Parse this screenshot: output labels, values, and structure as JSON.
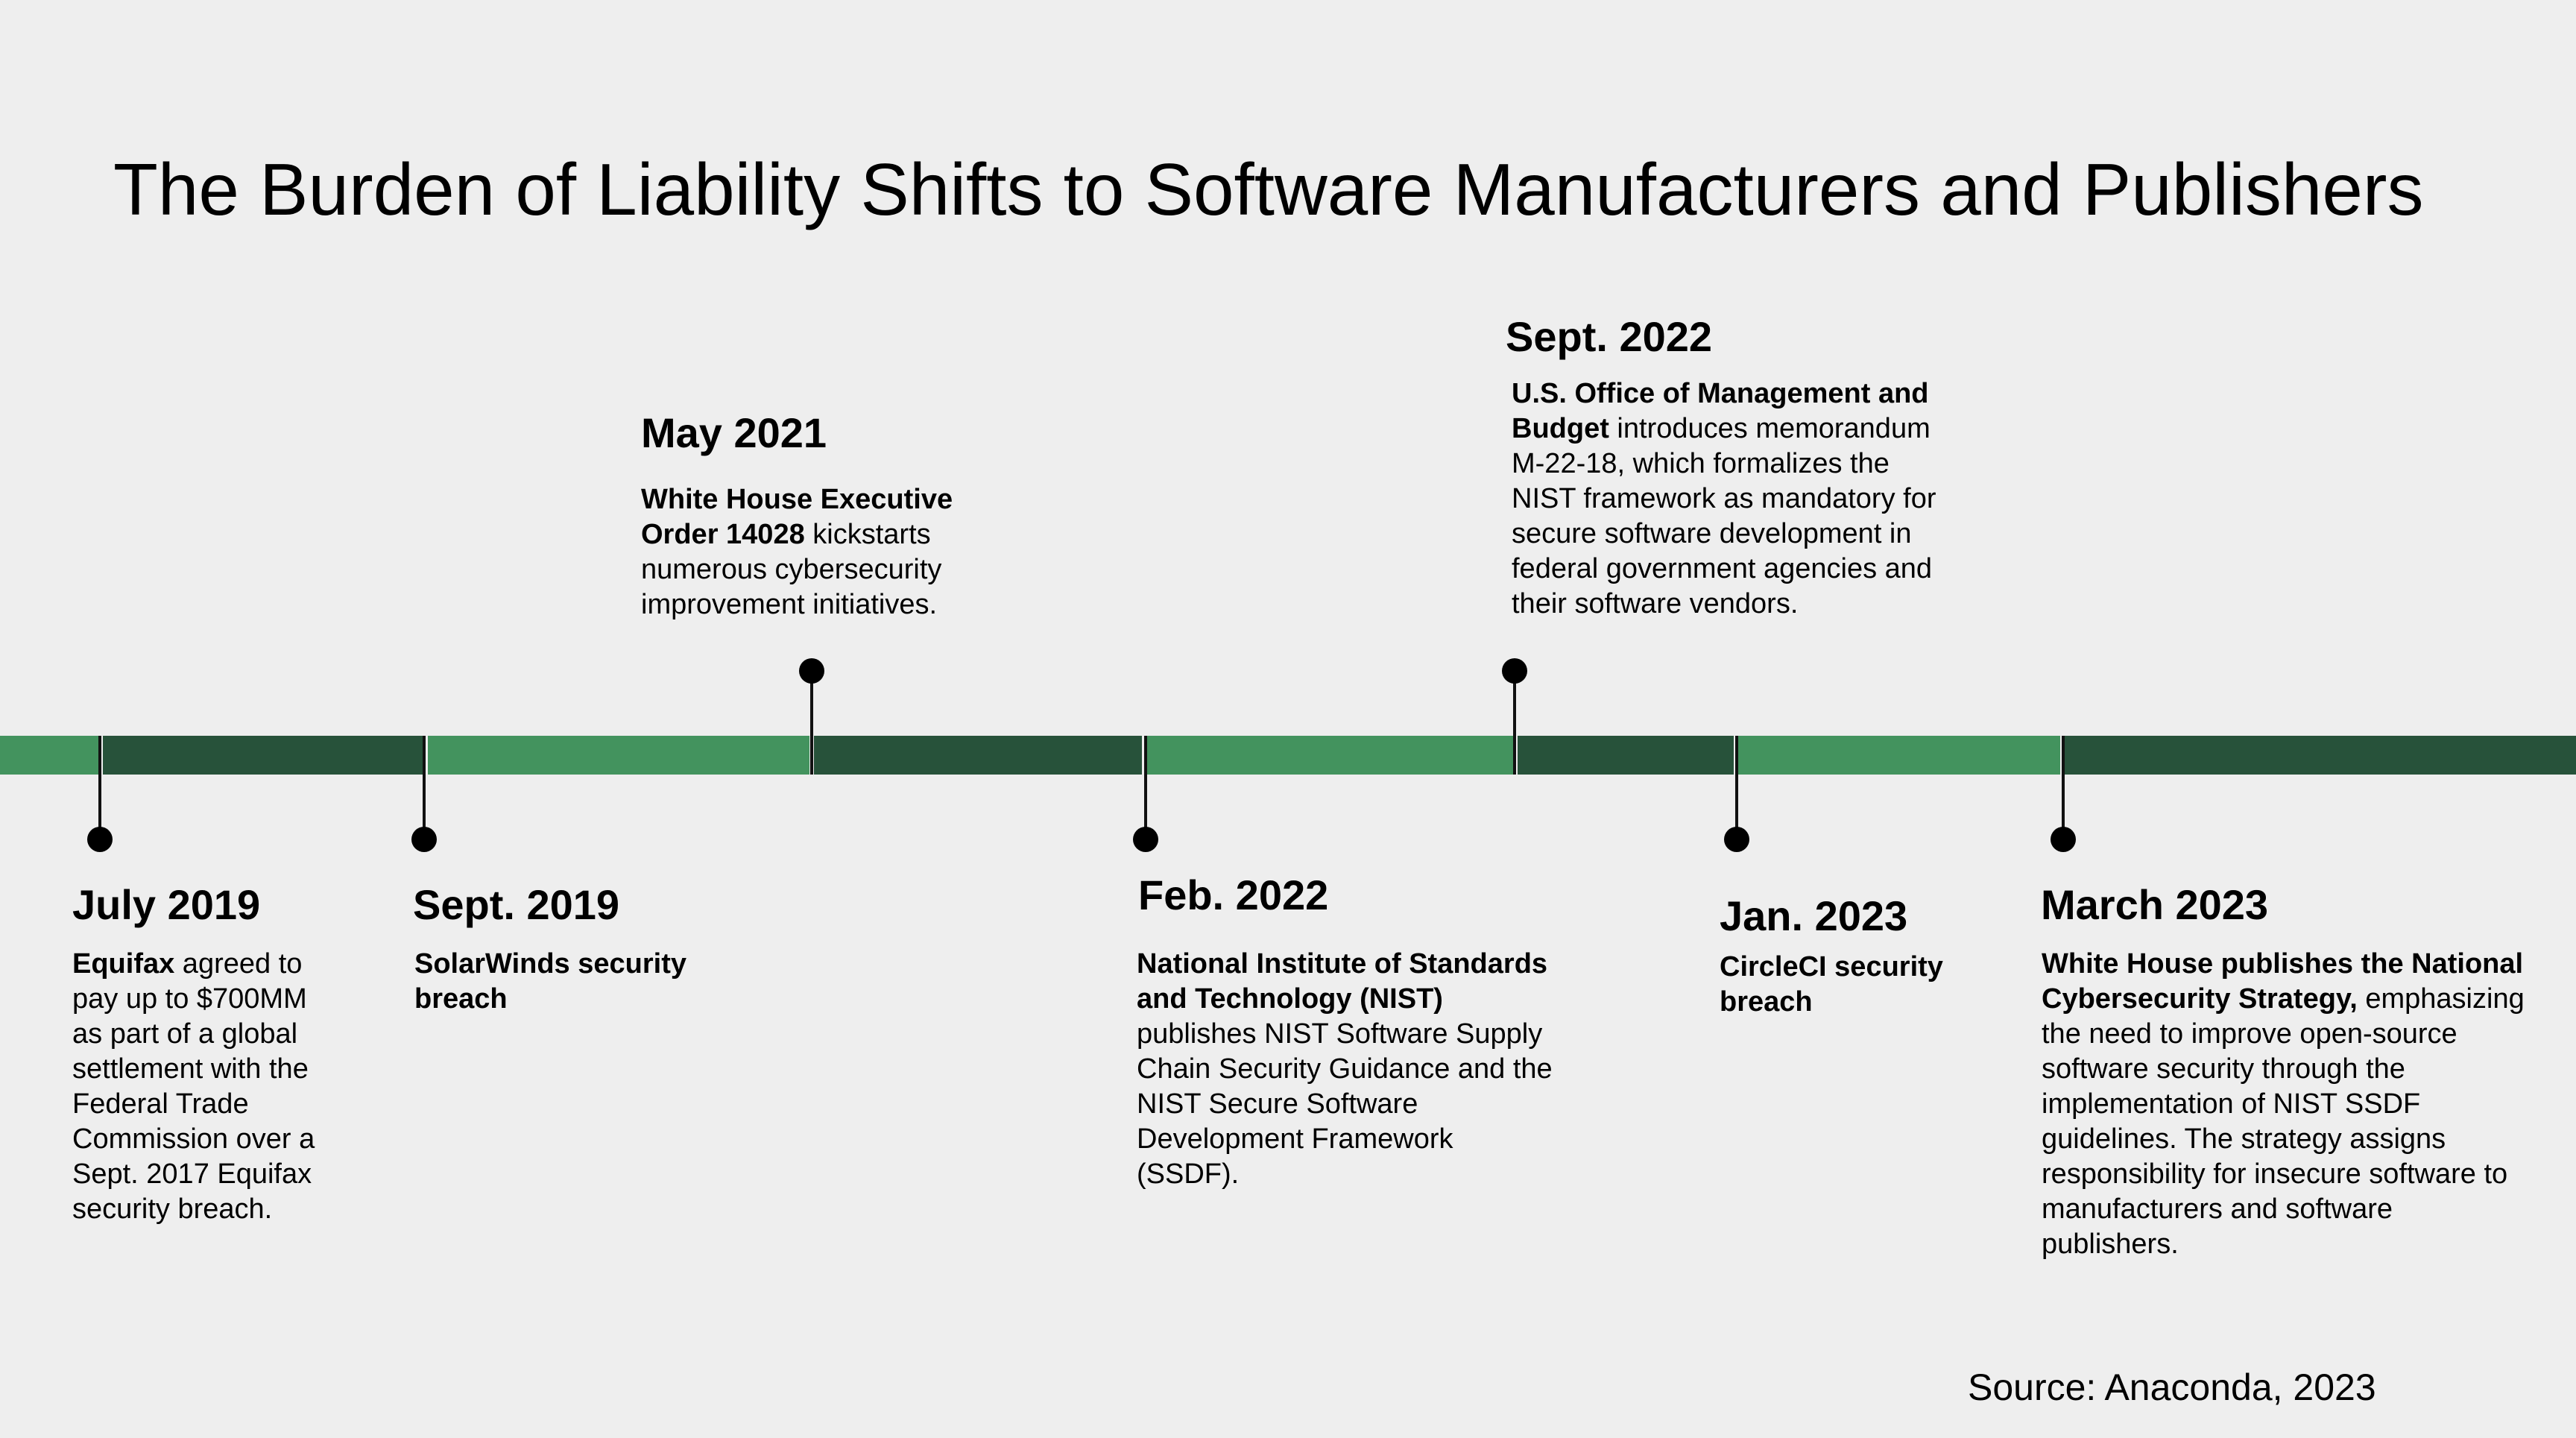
{
  "title": "The Burden of Liability Shifts to Software Manufacturers and Publishers",
  "source": "Source: Anaconda, 2023",
  "colors": {
    "background": "#eeeeee",
    "bar_light_green": "#43935e",
    "bar_dark_green": "#27523a",
    "marker": "#000000"
  },
  "events": [
    {
      "date": "July 2019",
      "bold": "Equifax",
      "text": " agreed to pay up to $700MM as part of a global settlement with the Federal Trade Commission over a Sept. 2017 Equifax security breach."
    },
    {
      "date": "Sept. 2019",
      "bold": "SolarWinds security breach",
      "text": ""
    },
    {
      "date": "May 2021",
      "bold": "White House Executive Order 14028",
      "text": " kickstarts numerous cybersecurity improvement initiatives."
    },
    {
      "date": "Feb. 2022",
      "bold": "National Institute of Standards and Technology (NIST)",
      "text": " publishes NIST Software Supply Chain Security Guidance and the NIST Secure Software Development Framework (SSDF)."
    },
    {
      "date": "Sept. 2022",
      "bold": "U.S. Office of Management and Budget",
      "text": " introduces memorandum M-22-18, which formalizes the NIST framework as mandatory for secure software development in federal government agencies and their software vendors."
    },
    {
      "date": "Jan. 2023",
      "bold": "CircleCI security breach",
      "text": ""
    },
    {
      "date": "March 2023",
      "bold": "White House publishes the National Cybersecurity Strategy,",
      "text": " emphasizing the need to improve open-source software security through the implementation of NIST SSDF guidelines. The strategy assigns responsibility for insecure software to manufacturers and software publishers."
    }
  ]
}
